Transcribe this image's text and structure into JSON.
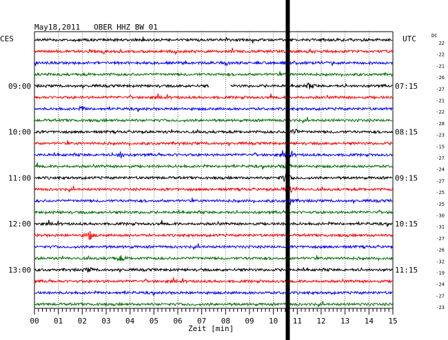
{
  "header": {
    "date": "May18,2011",
    "station": "OBER HHZ BW 01",
    "left_timezone": "CES",
    "right_timezone": "UTC",
    "dc_label": "DC"
  },
  "chart_data": {
    "type": "line",
    "title": "May18,2011   OBER HHZ BW 01",
    "xlabel": "Zeit [min]",
    "xlim": [
      0,
      15
    ],
    "x_ticks": [
      "00",
      "01",
      "02",
      "03",
      "04",
      "05",
      "06",
      "07",
      "08",
      "09",
      "10",
      "11",
      "12",
      "13",
      "14",
      "15"
    ],
    "trace_colors": [
      "#000000",
      "#ff0000",
      "#0000ff",
      "#007000"
    ],
    "left_time_labels": [
      {
        "row": 4,
        "text": "09:00"
      },
      {
        "row": 8,
        "text": "10:00"
      },
      {
        "row": 12,
        "text": "11:00"
      },
      {
        "row": 16,
        "text": "12:00"
      },
      {
        "row": 20,
        "text": "13:00"
      }
    ],
    "right_time_labels": [
      {
        "row": 4,
        "text": "07:15"
      },
      {
        "row": 8,
        "text": "08:15"
      },
      {
        "row": 12,
        "text": "09:15"
      },
      {
        "row": 16,
        "text": "10:15"
      },
      {
        "row": 20,
        "text": "11:15"
      }
    ],
    "dc_offsets": [
      "22",
      "-22",
      "-21",
      "-26",
      "-27",
      "-21",
      "-22",
      "-28",
      "-23",
      "-15",
      "-27",
      "-24",
      "-27",
      "-25",
      "-25",
      "-30",
      "-31",
      "-27",
      "-26",
      "-32",
      "-19",
      "-24",
      "-27",
      "-23"
    ],
    "event_time_min": 10.6,
    "gap": {
      "row": 4,
      "start_min": 7.3,
      "end_min": 8.2
    },
    "bursts": [
      {
        "row": 13,
        "time_min": 10.6,
        "amp": 10
      },
      {
        "row": 12,
        "time_min": 10.55,
        "amp": 9
      },
      {
        "row": 10,
        "time_min": 10.6,
        "amp": 6
      },
      {
        "row": 11,
        "time_min": 10.55,
        "amp": 6
      },
      {
        "row": 14,
        "time_min": 10.7,
        "amp": 5
      },
      {
        "row": 8,
        "time_min": 10.9,
        "amp": 5
      },
      {
        "row": 10,
        "time_min": 3.6,
        "amp": 4
      },
      {
        "row": 17,
        "time_min": 2.3,
        "amp": 6
      },
      {
        "row": 19,
        "time_min": 3.6,
        "amp": 4
      },
      {
        "row": 4,
        "time_min": 11.5,
        "amp": 4
      },
      {
        "row": 20,
        "time_min": 2.3,
        "amp": 3
      },
      {
        "row": 2,
        "time_min": 8.0,
        "amp": 3
      },
      {
        "row": 6,
        "time_min": 2.0,
        "amp": 3
      }
    ]
  }
}
